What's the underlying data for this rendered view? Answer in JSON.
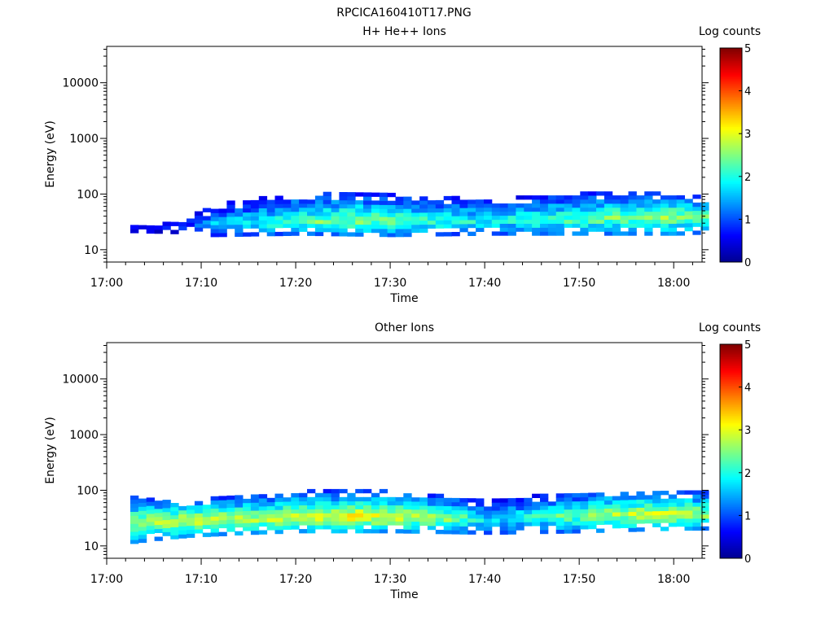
{
  "figure_title": "RPCICA160410T17.PNG",
  "colormap": [
    "#00008f",
    "#0000ff",
    "#0080ff",
    "#00ffff",
    "#80ff80",
    "#ffff00",
    "#ff8000",
    "#ff0000",
    "#800000"
  ],
  "chart_data": [
    {
      "type": "heatmap",
      "title": "H+ He++ Ions",
      "xlabel": "Time",
      "ylabel": "Energy (eV)",
      "xlim": [
        "17:00",
        "18:03"
      ],
      "ylim": [
        6,
        45000
      ],
      "yscale": "log",
      "xticks": [
        "17:00",
        "17:10",
        "17:20",
        "17:30",
        "17:40",
        "17:50",
        "18:00"
      ],
      "yticks": [
        {
          "value": 10,
          "label": "10"
        },
        {
          "value": 100,
          "label": "100"
        },
        {
          "value": 1000,
          "label": "1000"
        },
        {
          "value": 10000,
          "label": "10000"
        }
      ],
      "colorbar": {
        "label": "Log counts",
        "range": [
          0,
          5
        ],
        "ticks": [
          "0",
          "1",
          "2",
          "3",
          "4",
          "5"
        ]
      },
      "band": {
        "start_min": 2.5,
        "end_min": 63,
        "low_energy_eV": [
          [
            2.5,
            20
          ],
          [
            8,
            19
          ],
          [
            11,
            17
          ],
          [
            20,
            18
          ],
          [
            30,
            17
          ],
          [
            40,
            18
          ],
          [
            50,
            18
          ],
          [
            60,
            18
          ],
          [
            63,
            19
          ]
        ],
        "peak_energy_eV": [
          [
            2.5,
            22
          ],
          [
            11,
            27
          ],
          [
            20,
            28
          ],
          [
            26,
            31
          ],
          [
            30,
            30
          ],
          [
            40,
            30
          ],
          [
            50,
            33
          ],
          [
            60,
            36
          ],
          [
            63,
            35
          ]
        ],
        "high_energy_eV": [
          [
            2.5,
            25
          ],
          [
            8,
            30
          ],
          [
            11,
            60
          ],
          [
            20,
            95
          ],
          [
            30,
            90
          ],
          [
            40,
            75
          ],
          [
            50,
            95
          ],
          [
            60,
            95
          ],
          [
            63,
            85
          ]
        ],
        "peak_log_counts": [
          [
            2.5,
            0.6
          ],
          [
            8,
            0.9
          ],
          [
            11,
            1.6
          ],
          [
            20,
            2.3
          ],
          [
            26,
            2.6
          ],
          [
            30,
            2.3
          ],
          [
            40,
            1.9
          ],
          [
            50,
            2.4
          ],
          [
            60,
            2.6
          ],
          [
            63,
            2.4
          ]
        ]
      }
    },
    {
      "type": "heatmap",
      "title": "Other Ions",
      "xlabel": "Time",
      "ylabel": "Energy (eV)",
      "xlim": [
        "17:00",
        "18:03"
      ],
      "ylim": [
        6,
        45000
      ],
      "yscale": "log",
      "xticks": [
        "17:00",
        "17:10",
        "17:20",
        "17:30",
        "17:40",
        "17:50",
        "18:00"
      ],
      "yticks": [
        {
          "value": 10,
          "label": "10"
        },
        {
          "value": 100,
          "label": "100"
        },
        {
          "value": 1000,
          "label": "1000"
        },
        {
          "value": 10000,
          "label": "10000"
        }
      ],
      "colorbar": {
        "label": "Log counts",
        "range": [
          0,
          5
        ],
        "ticks": [
          "0",
          "1",
          "2",
          "3",
          "4",
          "5"
        ]
      },
      "band": {
        "start_min": 2.5,
        "end_min": 63,
        "low_energy_eV": [
          [
            2.5,
            11
          ],
          [
            8,
            14
          ],
          [
            15,
            16
          ],
          [
            20,
            17
          ],
          [
            30,
            17
          ],
          [
            40,
            16
          ],
          [
            50,
            17
          ],
          [
            60,
            19
          ],
          [
            63,
            19
          ]
        ],
        "peak_energy_eV": [
          [
            2.5,
            25
          ],
          [
            8,
            27
          ],
          [
            15,
            28
          ],
          [
            20,
            29
          ],
          [
            26,
            31
          ],
          [
            30,
            30
          ],
          [
            40,
            28
          ],
          [
            50,
            33
          ],
          [
            58,
            35
          ],
          [
            63,
            34
          ]
        ],
        "high_energy_eV": [
          [
            2.5,
            70
          ],
          [
            8,
            60
          ],
          [
            15,
            75
          ],
          [
            20,
            90
          ],
          [
            30,
            90
          ],
          [
            40,
            60
          ],
          [
            50,
            90
          ],
          [
            60,
            90
          ],
          [
            63,
            85
          ]
        ],
        "peak_log_counts": [
          [
            2.5,
            2.6
          ],
          [
            8,
            3.0
          ],
          [
            15,
            2.8
          ],
          [
            20,
            2.9
          ],
          [
            26,
            3.2
          ],
          [
            30,
            2.9
          ],
          [
            36,
            2.6
          ],
          [
            40,
            1.7
          ],
          [
            50,
            2.5
          ],
          [
            58,
            3.0
          ],
          [
            63,
            2.7
          ]
        ]
      }
    }
  ]
}
